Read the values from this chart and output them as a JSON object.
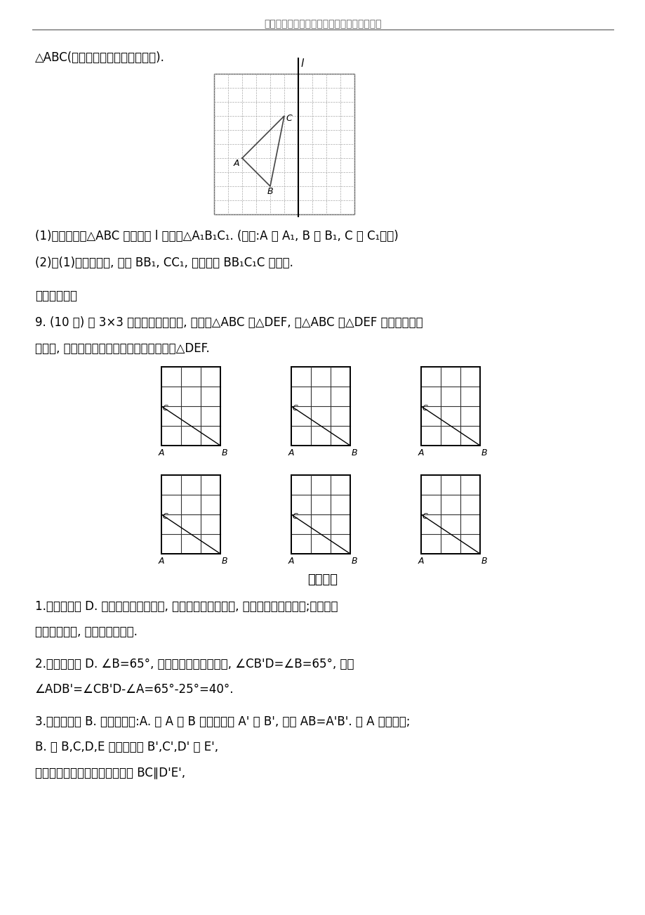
{
  "header_text": "最新海量高中、初中教学资料尽在金锄头文库",
  "title_text1": "△ABC(即三角形的顶点都在格点上).",
  "q1_text": "(1)在图中作出△ABC 关于直线 l 对称的△A₁B₁C₁. (要求:A 与 A₁, B 与 B₁, C 与 C₁相应)",
  "q2_text": "(2)在(1)题的结果下, 连接 BB₁, CC₁, 求四边形 BB₁C₁C 的面积.",
  "extension_title": "【拓展延伸】",
  "q9_text": "9. (10 分) 在 3×3 的正方形格点图中, 有格点△ABC 和△DEF, 且△ABC 和△DEF 关于某直线成",
  "q9_text2": "轴对称, 请在下面的备用图中画出所有这样的△DEF.",
  "answer_title": "答案解析",
  "ans1_line1": "1.【解析】选 D. 由成轴对称的性质知, 若图形的点在直线上, 则其对称点在直线上;若图形的",
  "ans1_line2": "点不在直线上, 则在直线的两旁.",
  "ans2_line1": "2.【解析】选 D. ∠B=65°, 根据轴对称的性质可知, ∠CB'D=∠B=65°, 所以",
  "ans2_line2": "∠ADB'=∠CB'D-∠A=65°-25°=40°.",
  "ans3_line1": "3.【解析】选 B. 由图形可知:A. 点 A 和 B 对称点是点 A' 和 B', 所以 AB=A'B'. 故 A 是正确的;",
  "ans3_line2": "B. 点 B,C,D,E 对称点是点 B',C',D' 和 E',",
  "ans3_line3": "所以根据正六边形的性质可得到 BC∥D'E',"
}
